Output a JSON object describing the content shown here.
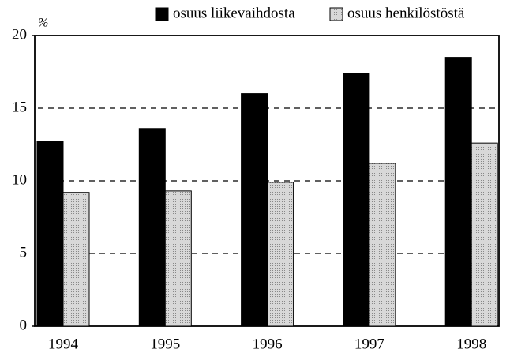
{
  "chart_data": {
    "type": "bar",
    "y_label": "%",
    "categories": [
      "1994",
      "1995",
      "1996",
      "1997",
      "1998"
    ],
    "series": [
      {
        "name": "osuus liikevaihdosta",
        "color": "#000000",
        "values": [
          12.7,
          13.6,
          16.0,
          17.4,
          18.5
        ]
      },
      {
        "name": "osuus henkilöstöstä",
        "color": "#cfcfcf",
        "values": [
          9.2,
          9.3,
          9.9,
          11.2,
          12.6
        ]
      }
    ],
    "ylim": [
      0,
      20
    ],
    "yticks": [
      0,
      5,
      10,
      15,
      20
    ],
    "grid": true,
    "legend": "top-right"
  }
}
